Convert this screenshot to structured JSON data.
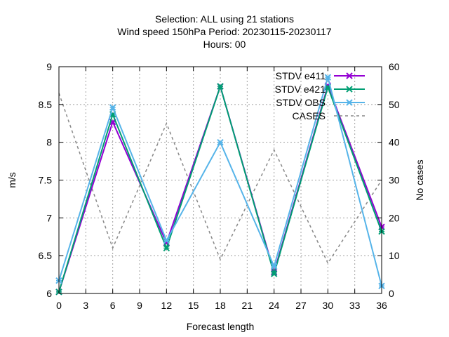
{
  "chart_data": {
    "type": "line",
    "title_lines": [
      "Selection: ALL using    21 stations",
      "Wind speed 150hPa   Period: 20230115-20230117",
      "Hours:  00"
    ],
    "xlabel": "Forecast length",
    "ylabel": "m/s",
    "y2label": "No cases",
    "xlim": [
      0,
      36
    ],
    "ylim": [
      6,
      9
    ],
    "y2lim": [
      0,
      60
    ],
    "xticks": [
      0,
      3,
      6,
      9,
      12,
      15,
      18,
      21,
      24,
      27,
      30,
      33,
      36
    ],
    "yticks": [
      6,
      6.5,
      7,
      7.5,
      8,
      8.5,
      9
    ],
    "y2ticks": [
      0,
      10,
      20,
      30,
      40,
      50,
      60
    ],
    "grid": true,
    "legend_position": "top-right",
    "x": [
      0,
      6,
      12,
      18,
      24,
      30,
      36
    ],
    "series": [
      {
        "name": "STDV e411",
        "axis": "y1",
        "color": "#9400d3",
        "marker": "x",
        "values": [
          6.02,
          8.27,
          6.67,
          8.74,
          6.28,
          8.75,
          6.88
        ]
      },
      {
        "name": "STDV e421",
        "axis": "y1",
        "color": "#009e73",
        "marker": "x",
        "values": [
          6.02,
          8.37,
          6.6,
          8.74,
          6.26,
          8.73,
          6.82
        ]
      },
      {
        "name": "STDV OBS",
        "axis": "y1",
        "color": "#56b4e9",
        "marker": "x",
        "values": [
          6.17,
          8.46,
          6.7,
          8.0,
          6.36,
          8.86,
          6.1
        ]
      },
      {
        "name": "CASES",
        "axis": "y2",
        "color": "#888888",
        "dashed": true,
        "marker": "none",
        "values": [
          53,
          12,
          45,
          9,
          38,
          8,
          30
        ]
      }
    ]
  }
}
